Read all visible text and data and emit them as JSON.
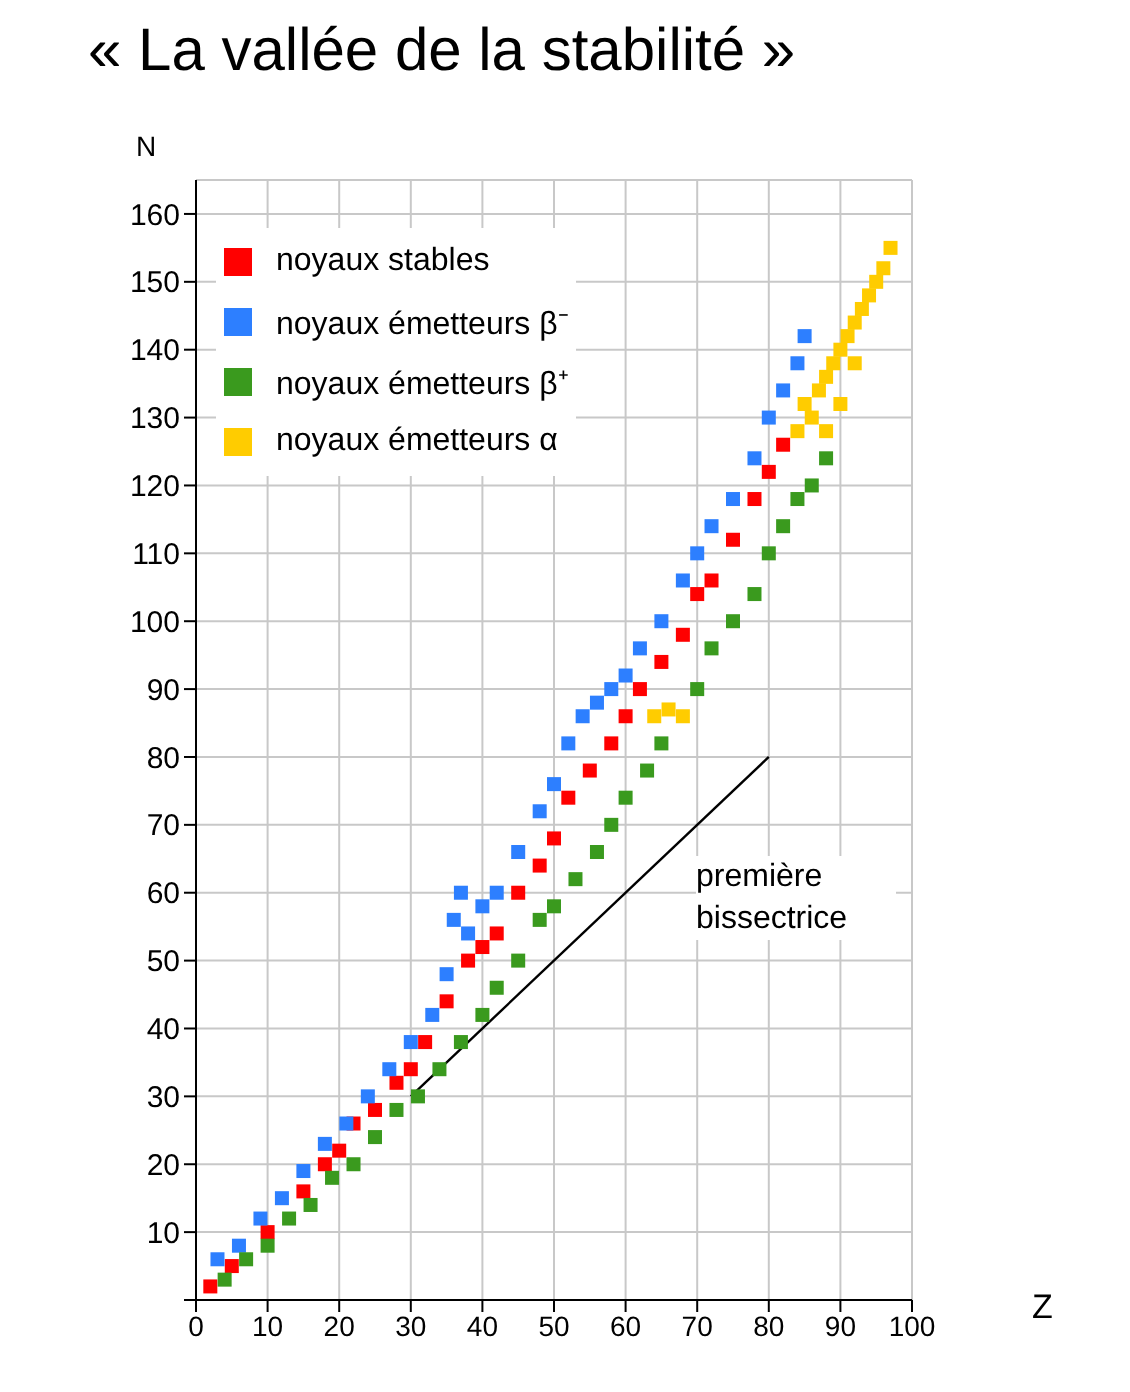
{
  "chart_data": {
    "type": "scatter",
    "title": "« La vallée de la stabilité »",
    "xlabel": "Z",
    "ylabel": "N",
    "xlim": [
      0,
      100
    ],
    "ylim": [
      0,
      165
    ],
    "xticks": [
      0,
      10,
      20,
      30,
      40,
      50,
      60,
      70,
      80,
      90,
      100
    ],
    "yticks": [
      {
        "value": 0,
        "label": null
      },
      10,
      20,
      30,
      40,
      50,
      60,
      70,
      80,
      90,
      100,
      110,
      120,
      130,
      140,
      150,
      160
    ],
    "grid": true,
    "legend": "top left",
    "marker": "square",
    "annotations": [
      "première bissectrice"
    ],
    "series": [
      {
        "name": "noyaux stables",
        "color": "#ff0000",
        "x": [
          2,
          5,
          10,
          15,
          18,
          20,
          22,
          25,
          28,
          30,
          32,
          35,
          38,
          40,
          42,
          45,
          48,
          50,
          52,
          55,
          58,
          60,
          62,
          65,
          68,
          70,
          72,
          75,
          78,
          80,
          82
        ],
        "values": [
          2,
          5,
          10,
          16,
          20,
          22,
          26,
          28,
          32,
          34,
          38,
          44,
          50,
          52,
          54,
          60,
          64,
          68,
          74,
          78,
          82,
          86,
          90,
          94,
          98,
          104,
          106,
          112,
          118,
          122,
          126
        ]
      },
      {
        "name": "noyaux émetteurs β⁻",
        "color": "#2d7fff",
        "x": [
          3,
          6,
          9,
          12,
          15,
          18,
          21,
          24,
          27,
          30,
          33,
          35,
          36,
          37,
          38,
          40,
          42,
          45,
          48,
          50,
          52,
          54,
          56,
          58,
          60,
          62,
          65,
          68,
          70,
          72,
          75,
          78,
          80,
          82,
          84,
          85
        ],
        "values": [
          6,
          8,
          12,
          15,
          19,
          23,
          26,
          30,
          34,
          38,
          42,
          48,
          56,
          60,
          54,
          58,
          60,
          66,
          72,
          76,
          82,
          86,
          88,
          90,
          92,
          96,
          100,
          106,
          110,
          114,
          118,
          124,
          130,
          134,
          138,
          142
        ]
      },
      {
        "name": "noyaux émetteurs β⁺",
        "color": "#3a9a1e",
        "x": [
          4,
          7,
          10,
          13,
          16,
          19,
          22,
          25,
          28,
          31,
          34,
          37,
          40,
          42,
          45,
          48,
          50,
          53,
          56,
          58,
          60,
          63,
          65,
          70,
          72,
          75,
          78,
          80,
          82,
          84,
          86,
          88
        ],
        "values": [
          3,
          6,
          8,
          12,
          14,
          18,
          20,
          24,
          28,
          30,
          34,
          38,
          42,
          46,
          50,
          56,
          58,
          62,
          66,
          70,
          74,
          78,
          82,
          90,
          96,
          100,
          104,
          110,
          114,
          118,
          120,
          124
        ]
      },
      {
        "name": "noyaux émetteurs α",
        "color": "#ffcc00",
        "x": [
          64,
          66,
          68,
          84,
          85,
          86,
          87,
          88,
          89,
          90,
          91,
          92,
          93,
          94,
          95,
          96,
          97,
          88,
          90,
          92
        ],
        "values": [
          86,
          87,
          86,
          128,
          132,
          130,
          134,
          136,
          138,
          140,
          142,
          144,
          146,
          148,
          150,
          152,
          155,
          128,
          132,
          138
        ]
      },
      {
        "type": "line",
        "color": "#000000",
        "marker": "none",
        "x": [
          30,
          80
        ],
        "values": [
          30,
          80
        ]
      }
    ]
  }
}
